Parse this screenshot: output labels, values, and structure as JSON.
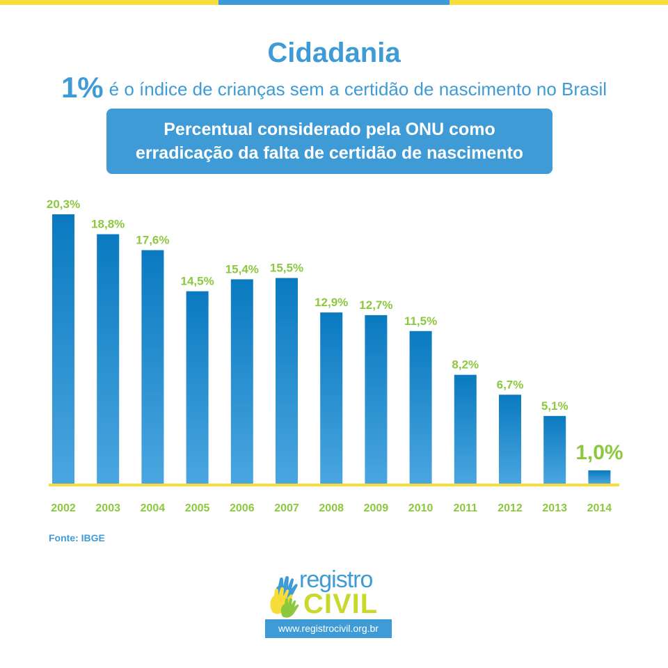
{
  "header": {
    "title": "Cidadania",
    "highlight": "1%",
    "subtitle": "é o índice de crianças sem a certidão de nascimento no Brasil",
    "banner_line1": "Percentual considerado pela ONU como",
    "banner_line2": "erradicação da falta de certidão de nascimento"
  },
  "chart_data": {
    "type": "bar",
    "categories": [
      "2002",
      "2003",
      "2004",
      "2005",
      "2006",
      "2007",
      "2008",
      "2009",
      "2010",
      "2011",
      "2012",
      "2013",
      "2014"
    ],
    "values": [
      20.3,
      18.8,
      17.6,
      14.5,
      15.4,
      15.5,
      12.9,
      12.7,
      11.5,
      8.2,
      6.7,
      5.1,
      1.0
    ],
    "value_labels": [
      "20,3%",
      "18,8%",
      "17,6%",
      "14,5%",
      "15,4%",
      "15,5%",
      "12,9%",
      "12,7%",
      "11,5%",
      "8,2%",
      "6,7%",
      "5,1%",
      "1,0%"
    ],
    "ylim": [
      0,
      20.3
    ],
    "grid": false,
    "colors": {
      "bar_top": "#0a7ac0",
      "bar_bottom": "#4aa6e0",
      "label": "#8cc83e",
      "baseline": "#f7dc3a"
    }
  },
  "footer": {
    "source": "Fonte: IBGE",
    "logo_line1": "registro",
    "logo_line2": "CIVIL",
    "url": "www.registrocivil.org.br"
  },
  "colors": {
    "blue": "#3e9bd6",
    "yellow": "#f7dc3a",
    "green": "#8cc83e"
  }
}
